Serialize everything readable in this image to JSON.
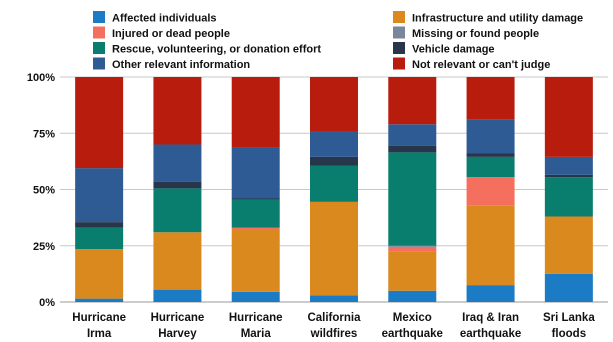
{
  "chart_data": {
    "type": "bar",
    "stacked": true,
    "categories": [
      [
        "Hurricane",
        "Irma"
      ],
      [
        "Hurricane",
        "Harvey"
      ],
      [
        "Hurricane",
        "Maria"
      ],
      [
        "California",
        "wildfires"
      ],
      [
        "Mexico",
        "earthquake"
      ],
      [
        "Iraq & Iran",
        "earthquake"
      ],
      [
        "Sri Lanka",
        "floods"
      ]
    ],
    "y_ticks": [
      "0%",
      "25%",
      "50%",
      "75%",
      "100%"
    ],
    "ylim": [
      0,
      100
    ],
    "grid": "horizontal",
    "legend_position": "top",
    "series": [
      {
        "name": "Affected individuals",
        "color": "#1b7bc4",
        "values": [
          1.5,
          5.5,
          4.5,
          3,
          5,
          7.5,
          12.5
        ]
      },
      {
        "name": "Infrastructure and utility damage",
        "color": "#d9891e",
        "values": [
          22,
          25.5,
          27.5,
          41.5,
          17.5,
          35.5,
          25.5
        ]
      },
      {
        "name": "Injured or dead people",
        "color": "#f56f5e",
        "values": [
          0,
          0,
          1,
          0,
          2,
          12.5,
          0
        ]
      },
      {
        "name": "Missing or found people",
        "color": "#7a8699",
        "values": [
          0,
          0,
          0,
          0,
          0.5,
          0,
          0
        ]
      },
      {
        "name": "Rescue, volunteering, or donation effort",
        "color": "#0a7e6e",
        "values": [
          9.5,
          19.5,
          12.5,
          16,
          41.5,
          9,
          17.5
        ]
      },
      {
        "name": "Vehicle damage",
        "color": "#27364a",
        "values": [
          2.5,
          3,
          0.5,
          4,
          3,
          1.5,
          1
        ]
      },
      {
        "name": "Other relevant information",
        "color": "#2f5b94",
        "values": [
          24,
          16.5,
          22.5,
          11.5,
          9.5,
          15,
          8
        ]
      },
      {
        "name": "Not relevant or can't judge",
        "color": "#b81c0c",
        "values": [
          40.5,
          30,
          31.5,
          24,
          21,
          19,
          35.5
        ]
      }
    ],
    "legend": {
      "left": [
        "Affected individuals",
        "Injured or dead people",
        "Rescue, volunteering, or donation effort",
        "Other relevant information"
      ],
      "right": [
        "Infrastructure and utility damage",
        "Missing or found people",
        "Vehicle damage",
        "Not relevant or can't judge"
      ]
    }
  }
}
